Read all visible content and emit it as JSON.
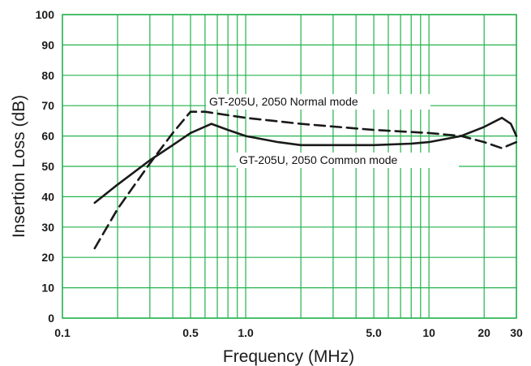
{
  "chart_data": {
    "type": "line",
    "xlabel": "Frequency (MHz)",
    "ylabel": "Insertion Loss (dB)",
    "x_scale": "log",
    "xlim": [
      0.1,
      30
    ],
    "ylim": [
      0,
      100
    ],
    "grid": true,
    "colors": {
      "grid": "#22b24c",
      "line": "#1a1a1a",
      "background": "#ffffff"
    },
    "y_ticks": [
      0,
      10,
      20,
      30,
      40,
      50,
      60,
      70,
      80,
      90,
      100
    ],
    "x_ticks": [
      {
        "value": 0.1,
        "label": "0.1"
      },
      {
        "value": 0.5,
        "label": "0.5"
      },
      {
        "value": 1.0,
        "label": "1.0"
      },
      {
        "value": 5.0,
        "label": "5.0"
      },
      {
        "value": 10,
        "label": "10"
      },
      {
        "value": 20,
        "label": "20"
      },
      {
        "value": 30,
        "label": "30"
      }
    ],
    "series": [
      {
        "name": "GT-205U, 2050 Normal mode",
        "style": "dashed",
        "x": [
          0.15,
          0.2,
          0.3,
          0.4,
          0.5,
          0.6,
          1.0,
          2.0,
          5.0,
          10,
          15,
          20,
          25,
          30
        ],
        "y": [
          23,
          36,
          51,
          61,
          68,
          68,
          66,
          64,
          62,
          61,
          60,
          58,
          56,
          58
        ]
      },
      {
        "name": "GT-205U, 2050 Common mode",
        "style": "solid",
        "x": [
          0.15,
          0.2,
          0.3,
          0.4,
          0.5,
          0.65,
          0.8,
          1.0,
          1.5,
          2.0,
          3.0,
          5.0,
          8.0,
          10,
          15,
          20,
          25,
          28,
          30
        ],
        "y": [
          38,
          44,
          52,
          57,
          61,
          64,
          62,
          60,
          58,
          57,
          57,
          57,
          57.5,
          58,
          60,
          63,
          66,
          64,
          60
        ]
      }
    ],
    "annotations": [
      {
        "text": "GT-205U, 2050 Normal mode",
        "series": 0
      },
      {
        "text": "GT-205U, 2050 Common mode",
        "series": 1
      }
    ]
  }
}
